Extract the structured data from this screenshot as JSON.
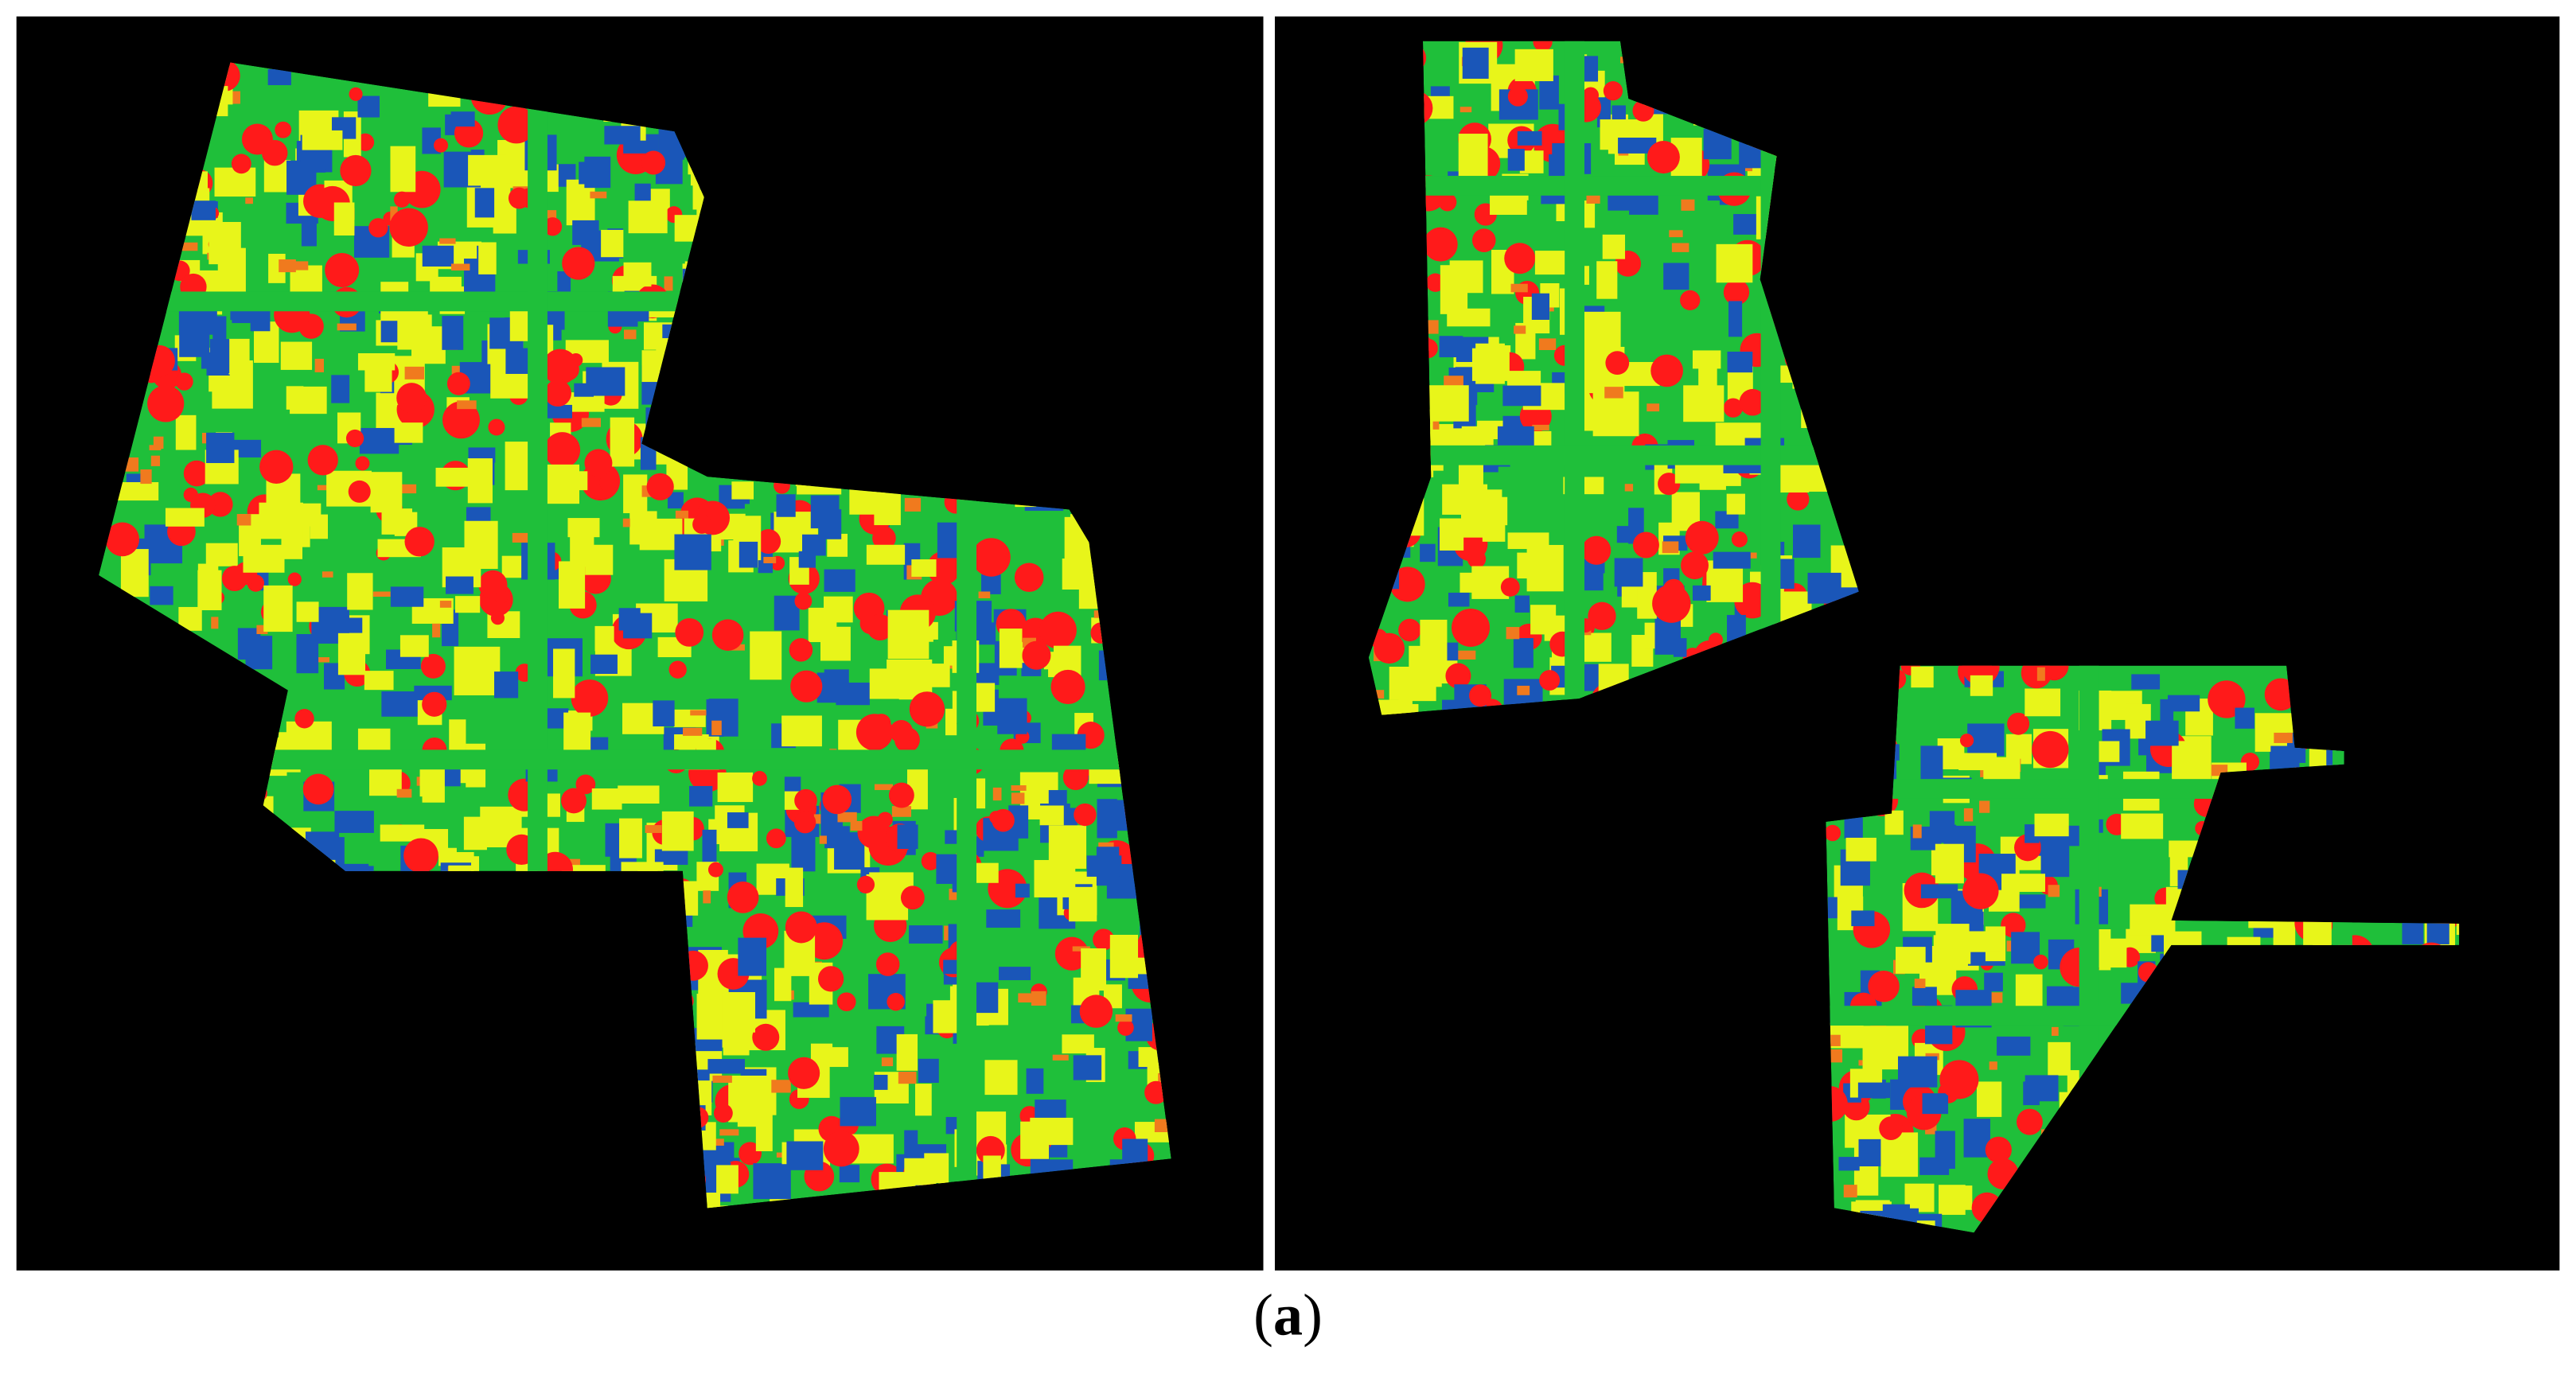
{
  "figure": {
    "caption": {
      "open": "(",
      "label": "a",
      "close": ")"
    }
  }
}
